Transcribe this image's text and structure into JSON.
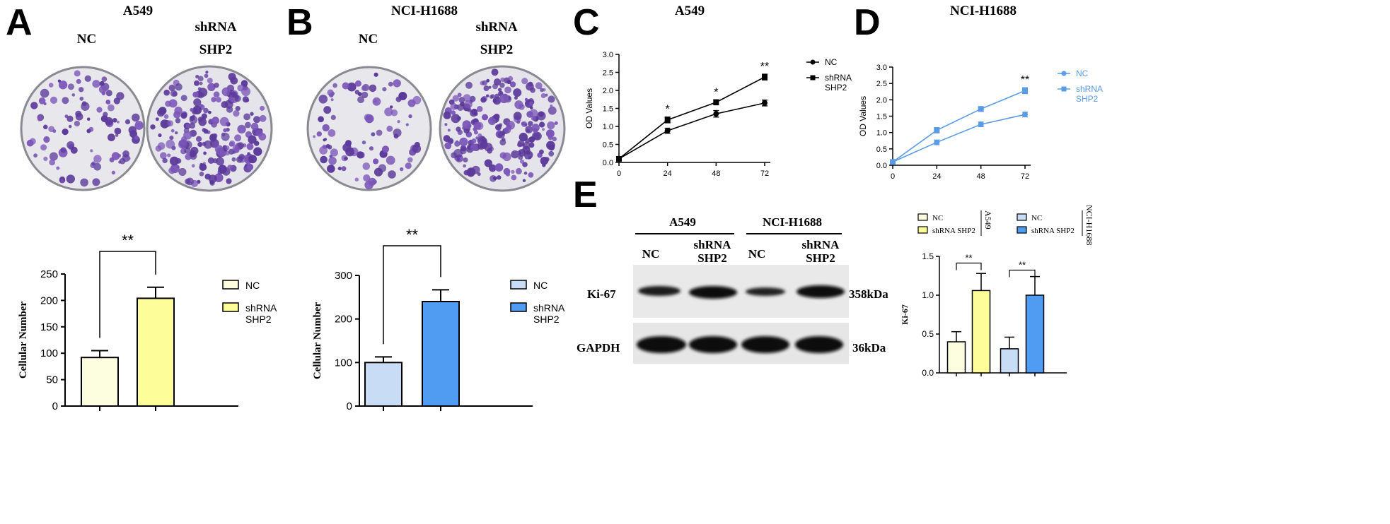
{
  "figure": {
    "panels": {
      "a": {
        "letter": "A",
        "title": "A549",
        "nc_label": "NC",
        "sh_label_1": "shRNA",
        "sh_label_2": "SHP2"
      },
      "b": {
        "letter": "B",
        "title": "NCI-H1688",
        "nc_label": "NC",
        "sh_label_1": "shRNA",
        "sh_label_2": "SHP2"
      },
      "c": {
        "letter": "C",
        "title": "A549"
      },
      "d": {
        "letter": "D",
        "title": "NCI-H1688"
      },
      "e": {
        "letter": "E",
        "blot": {
          "group1": "A549",
          "group2": "NCI-H1688",
          "lanes": [
            "NC",
            "shRNA\nSHP2",
            "NC",
            "shRNA\nSHP2"
          ],
          "rows": [
            {
              "label": "Ki-67",
              "size": "358kDa"
            },
            {
              "label": "GAPDH",
              "size": "36kDa"
            }
          ]
        }
      }
    }
  },
  "chart_data": [
    {
      "id": "colony-bar-a549",
      "type": "bar",
      "categories": [
        "NC",
        "shRNA SHP2"
      ],
      "values": [
        92,
        204
      ],
      "errors": [
        13,
        21
      ],
      "colors": [
        "#fdfde0",
        "#fdfd9a"
      ],
      "ylabel": "Cellular Number",
      "ylim": [
        0,
        250
      ],
      "yticks": [
        0,
        50,
        100,
        150,
        200,
        250
      ],
      "significance": "**",
      "legend": [
        {
          "name": "NC",
          "color": "#fdfde0"
        },
        {
          "name": "shRNA\nSHP2",
          "color": "#fdfd9a"
        }
      ]
    },
    {
      "id": "colony-bar-h1688",
      "type": "bar",
      "categories": [
        "NC",
        "shRNA SHP2"
      ],
      "values": [
        100,
        240
      ],
      "errors": [
        13,
        27
      ],
      "colors": [
        "#c8ddf5",
        "#4f9cf2"
      ],
      "ylabel": "Cellular Number",
      "ylim": [
        0,
        300
      ],
      "yticks": [
        0,
        100,
        200,
        300
      ],
      "significance": "**",
      "legend": [
        {
          "name": "NC",
          "color": "#c8ddf5"
        },
        {
          "name": "shRNA\nSHP2",
          "color": "#4f9cf2"
        }
      ]
    },
    {
      "id": "od-line-a549",
      "type": "line",
      "x": [
        0,
        24,
        48,
        72
      ],
      "xticks": [
        "0",
        "24",
        "48",
        "72"
      ],
      "ylabel": "OD Values",
      "ylim": [
        0,
        3.0
      ],
      "yticks": [
        "0.0",
        "0.5",
        "1.0",
        "1.5",
        "2.0",
        "2.5",
        "3.0"
      ],
      "color": "#000000",
      "series": [
        {
          "name": "NC",
          "marker": "circle",
          "values": [
            0.1,
            0.88,
            1.35,
            1.65
          ],
          "errors": [
            0.03,
            0.07,
            0.09,
            0.08
          ]
        },
        {
          "name": "shRNA\nSHP2",
          "marker": "square",
          "values": [
            0.1,
            1.18,
            1.67,
            2.37
          ],
          "errors": [
            0.03,
            0.08,
            0.07,
            0.08
          ]
        }
      ],
      "significance": [
        "",
        "*",
        "*",
        "**"
      ]
    },
    {
      "id": "od-line-h1688",
      "type": "line",
      "x": [
        0,
        24,
        48,
        72
      ],
      "xticks": [
        "0",
        "24",
        "48",
        "72"
      ],
      "ylabel": "OD Values",
      "ylim": [
        0,
        3.0
      ],
      "yticks": [
        "0.0",
        "0.5",
        "1.0",
        "1.5",
        "2.0",
        "2.5",
        "3.0"
      ],
      "color": "#5a9be3",
      "series": [
        {
          "name": "NC",
          "marker": "circle",
          "values": [
            0.1,
            0.7,
            1.25,
            1.55
          ],
          "errors": [
            0.03,
            0.07,
            0.07,
            0.07
          ]
        },
        {
          "name": "shRNA\nSHP2",
          "marker": "square",
          "values": [
            0.1,
            1.07,
            1.72,
            2.28
          ],
          "errors": [
            0.03,
            0.08,
            0.07,
            0.09
          ]
        }
      ],
      "significance": [
        "",
        "",
        "",
        "**"
      ]
    },
    {
      "id": "ki67-bar",
      "type": "bar",
      "categories": [
        "NC",
        "shRNA SHP2",
        "NC",
        "shRNA SHP2"
      ],
      "values": [
        0.4,
        1.06,
        0.31,
        1.0
      ],
      "errors": [
        0.13,
        0.22,
        0.15,
        0.24
      ],
      "colors": [
        "#fdfde0",
        "#fdfd9a",
        "#c8ddf5",
        "#4f9cf2"
      ],
      "ylabel": "Ki-67",
      "ylim": [
        0,
        1.5
      ],
      "yticks": [
        "0.0",
        "0.5",
        "1.0",
        "1.5"
      ],
      "significance": [
        "**",
        "**"
      ],
      "legend_groups": [
        {
          "title": "A549",
          "items": [
            {
              "name": "NC",
              "color": "#fdfde0"
            },
            {
              "name": "shRNA SHP2",
              "color": "#fdfd9a"
            }
          ]
        },
        {
          "title": "NCI-H1688",
          "items": [
            {
              "name": "NC",
              "color": "#c8ddf5"
            },
            {
              "name": "shRNA SHP2",
              "color": "#4f9cf2"
            }
          ]
        }
      ]
    }
  ]
}
